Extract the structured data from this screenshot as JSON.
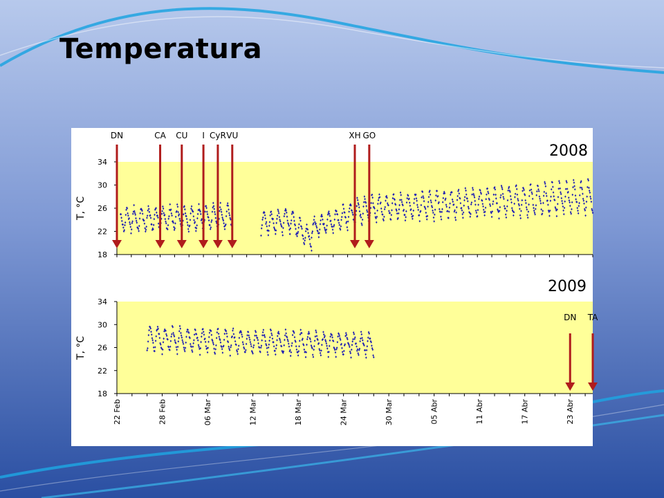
{
  "slide": {
    "title": "Temperatura",
    "colors": {
      "background_top": "#b7c9ec",
      "background_bottom": "#2a4fa2",
      "swoosh": "#1fa3e0",
      "plot_fill": "#ffff99",
      "data": "#1f1fb3",
      "arrow": "#b01c1c"
    }
  },
  "chart_data": [
    {
      "type": "scatter",
      "panel_label": "2008",
      "ylabel": "T, °C",
      "ylim": [
        18,
        34
      ],
      "yticks": [
        18,
        22,
        26,
        30,
        34
      ],
      "xlim": [
        "2008-02-22",
        "2008-04-28"
      ],
      "xticks": [],
      "legend": "none",
      "series": [
        {
          "marker": "diamond",
          "color": "#1f1fb3",
          "segments": [
            {
              "start": "2008-02-22T12:00",
              "end": "2008-03-09T00:00",
              "mean": [
                24.0,
                24.5
              ],
              "amplitude": [
                4.5,
                4.5
              ]
            },
            {
              "start": "2008-03-13T00:00",
              "end": "2008-03-17T00:00",
              "mean": [
                23.5,
                24.0
              ],
              "amplitude": [
                4.0,
                4.5
              ]
            },
            {
              "start": "2008-03-17T00:00",
              "end": "2008-03-20T00:00",
              "mean": [
                24.0,
                20.5
              ],
              "amplitude": [
                4.5,
                3.0
              ]
            },
            {
              "start": "2008-03-20T00:00",
              "end": "2008-03-28T00:00",
              "mean": [
                22.5,
                26.0
              ],
              "amplitude": [
                3.5,
                5.0
              ]
            },
            {
              "start": "2008-03-28T00:00",
              "end": "2008-04-28T00:00",
              "mean": [
                26.0,
                28.0
              ],
              "amplitude": [
                4.5,
                6.0
              ]
            }
          ]
        }
      ],
      "events": [
        {
          "label": "DN",
          "date": "2008-02-22"
        },
        {
          "label": "CA",
          "date": "2008-02-28"
        },
        {
          "label": "CU",
          "date": "2008-03-02"
        },
        {
          "label": "I",
          "date": "2008-03-05"
        },
        {
          "label": "CyR",
          "date": "2008-03-07"
        },
        {
          "label": "VU",
          "date": "2008-03-09"
        },
        {
          "label": "XH",
          "date": "2008-03-26"
        },
        {
          "label": "GO",
          "date": "2008-03-28"
        }
      ]
    },
    {
      "type": "scatter",
      "panel_label": "2009",
      "ylabel": "T, °C",
      "ylim": [
        18,
        34
      ],
      "yticks": [
        18,
        22,
        26,
        30,
        34
      ],
      "xlim": [
        "2009-02-22",
        "2009-04-26"
      ],
      "xticks": [
        "22 Feb",
        "28 Feb",
        "06 Mar",
        "12 Mar",
        "18 Mar",
        "24 Mar",
        "30 Mar",
        "05 Abr",
        "11 Abr",
        "17 Abr",
        "23 Abr"
      ],
      "legend": "none",
      "series": [
        {
          "marker": "diamond",
          "color": "#1f1fb3",
          "segments": [
            {
              "start": "2009-02-26T00:00",
              "end": "2009-03-28T00:00",
              "mean": [
                27.5,
                26.5
              ],
              "amplitude": [
                4.5,
                4.0
              ]
            }
          ]
        }
      ],
      "events": [
        {
          "label": "DN",
          "date": "2009-04-23"
        },
        {
          "label": "TA",
          "date": "2009-04-26"
        }
      ]
    }
  ]
}
